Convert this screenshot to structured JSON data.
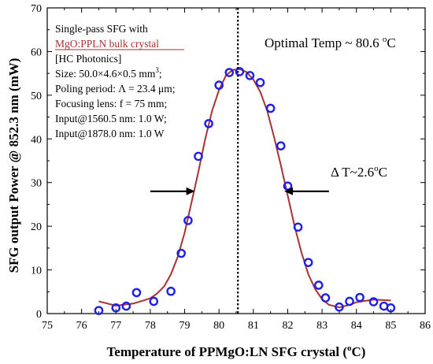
{
  "chart_data": {
    "type": "scatter",
    "xlabel": "Temperature of PPMgO:LN SFG crystal (",
    "xlabel_sup": "o",
    "xlabel_tail": "C)",
    "ylabel": "SFG output Power @ 852.3 nm (mW)",
    "xlim": [
      75,
      86
    ],
    "ylim": [
      0,
      70
    ],
    "xticks": [
      75,
      76,
      77,
      78,
      79,
      80,
      81,
      82,
      83,
      84,
      85,
      86
    ],
    "yticks": [
      0,
      10,
      20,
      30,
      40,
      50,
      60,
      70
    ],
    "grid": false,
    "legend": "none",
    "series": [
      {
        "kind": "scatter",
        "marker": "open-circle",
        "color": "#1f1fe6",
        "x": [
          76.5,
          77.0,
          77.3,
          77.6,
          78.1,
          78.6,
          78.9,
          79.1,
          79.4,
          79.7,
          80.0,
          80.3,
          80.6,
          80.9,
          81.2,
          81.5,
          81.8,
          82.0,
          82.3,
          82.6,
          82.9,
          83.1,
          83.5,
          83.8,
          84.1,
          84.5,
          84.8,
          85.0
        ],
        "y": [
          0.7,
          1.3,
          1.7,
          4.8,
          2.8,
          5.1,
          13.8,
          21.3,
          36.0,
          43.5,
          52.3,
          55.2,
          55.4,
          54.5,
          52.9,
          47.0,
          38.4,
          29.2,
          19.8,
          11.7,
          6.5,
          3.6,
          1.5,
          2.8,
          3.7,
          2.7,
          1.7,
          1.3
        ]
      },
      {
        "kind": "line",
        "color": "#a83232",
        "x": [
          76.5,
          77.0,
          77.5,
          77.8,
          78.0,
          78.2,
          78.4,
          78.6,
          78.8,
          79.0,
          79.2,
          79.4,
          79.6,
          79.8,
          80.0,
          80.2,
          80.4,
          80.6,
          80.8,
          81.0,
          81.2,
          81.4,
          81.6,
          81.8,
          82.0,
          82.2,
          82.4,
          82.6,
          82.8,
          83.0,
          83.2,
          83.5,
          83.8,
          84.0,
          84.5,
          85.0
        ],
        "y": [
          2.8,
          1.8,
          2.3,
          3.0,
          3.5,
          4.6,
          6.2,
          9.0,
          13.0,
          18.5,
          25.5,
          32.5,
          40.0,
          46.5,
          51.2,
          54.5,
          55.8,
          56.0,
          55.3,
          53.6,
          50.8,
          46.5,
          40.5,
          34.0,
          27.0,
          20.0,
          14.0,
          9.0,
          5.6,
          3.3,
          2.0,
          1.4,
          2.0,
          2.6,
          3.2,
          3.0
        ]
      }
    ],
    "vline": {
      "x": 80.55,
      "style": "dotted"
    },
    "annotations": {
      "lines": [
        "Single-pass SFG with",
        "MgO:PPLN bulk crystal",
        "[HC Photonics]",
        "Poling period: Λ = 23.4 μm;",
        "Focusing lens: f = 75 mm;",
        "Input@1560.5 nm: 1.0 W;",
        "Input@1878.0 nm: 1.0 W"
      ],
      "size_prefix": "Size: 50.0×4.6×0.5 mm",
      "size_sup": "3",
      "size_suffix": ";",
      "optimal_prefix": "Optimal Temp ~ 80.6 ",
      "optimal_sup": "o",
      "optimal_suffix": "C",
      "delta_prefix": "Δ T~2.6",
      "delta_sup": "o",
      "delta_suffix": "C"
    },
    "arrows": [
      {
        "from_x": 78.0,
        "to_x": 79.3,
        "y": 28.0
      },
      {
        "from_x": 83.2,
        "to_x": 81.9,
        "y": 28.0
      }
    ]
  }
}
